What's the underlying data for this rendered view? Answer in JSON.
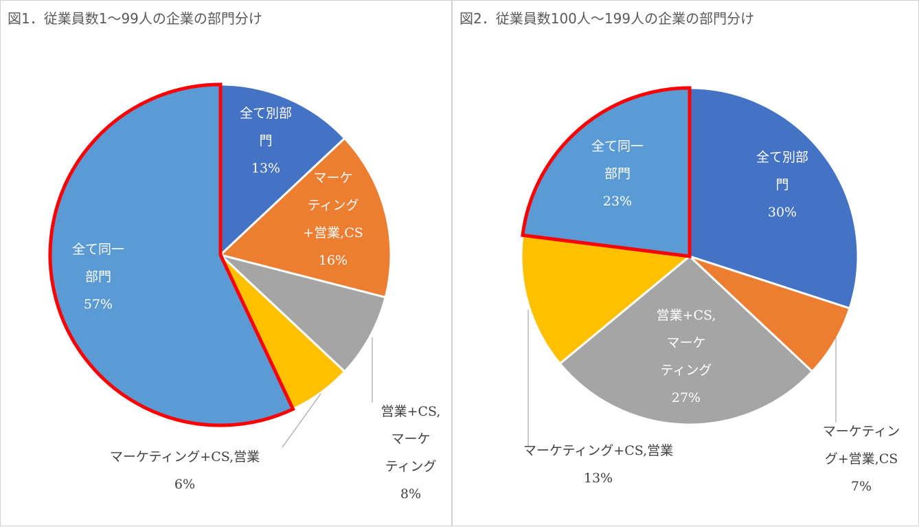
{
  "chart_data": [
    {
      "type": "pie",
      "title": "図1．従業員数1〜99人の企業の部門分け",
      "slices": [
        {
          "label_lines": [
            "全て別部",
            "門"
          ],
          "value": 13,
          "pct": "13%",
          "color": "#4472c4",
          "label_inside": true,
          "highlight": false
        },
        {
          "label_lines": [
            "マーケ",
            "ティング",
            "+営業,CS"
          ],
          "value": 16,
          "pct": "16%",
          "color": "#ed7d31",
          "label_inside": true,
          "highlight": false
        },
        {
          "label_lines": [
            "営業+CS,",
            "マーケ",
            "ティング"
          ],
          "value": 8,
          "pct": "8%",
          "color": "#a5a5a5",
          "label_inside": false,
          "highlight": false
        },
        {
          "label_lines": [
            "マーケティング+CS,営業"
          ],
          "value": 6,
          "pct": "6%",
          "color": "#ffc000",
          "label_inside": false,
          "highlight": false
        },
        {
          "label_lines": [
            "全て同一",
            "部門"
          ],
          "value": 57,
          "pct": "57%",
          "color": "#5b9bd5",
          "label_inside": true,
          "highlight": true
        }
      ]
    },
    {
      "type": "pie",
      "title": "図2．従業員数100人〜199人の企業の部門分け",
      "slices": [
        {
          "label_lines": [
            "全て別部",
            "門"
          ],
          "value": 30,
          "pct": "30%",
          "color": "#4472c4",
          "label_inside": true,
          "highlight": false
        },
        {
          "label_lines": [
            "マーケティン",
            "グ+営業,CS"
          ],
          "value": 7,
          "pct": "7%",
          "color": "#ed7d31",
          "label_inside": false,
          "highlight": false
        },
        {
          "label_lines": [
            "営業+CS,",
            "マーケ",
            "ティング"
          ],
          "value": 27,
          "pct": "27%",
          "color": "#a5a5a5",
          "label_inside": true,
          "highlight": false
        },
        {
          "label_lines": [
            "マーケティング+CS,営業"
          ],
          "value": 13,
          "pct": "13%",
          "color": "#ffc000",
          "label_inside": false,
          "highlight": false
        },
        {
          "label_lines": [
            "全て同一",
            "部門"
          ],
          "value": 23,
          "pct": "23%",
          "color": "#5b9bd5",
          "label_inside": true,
          "highlight": true
        }
      ]
    }
  ],
  "colors": {
    "highlight_border": "#ff0000",
    "inside_label": "#ffffff",
    "outside_label": "#404040",
    "leader_line": "#a6a6a6"
  }
}
